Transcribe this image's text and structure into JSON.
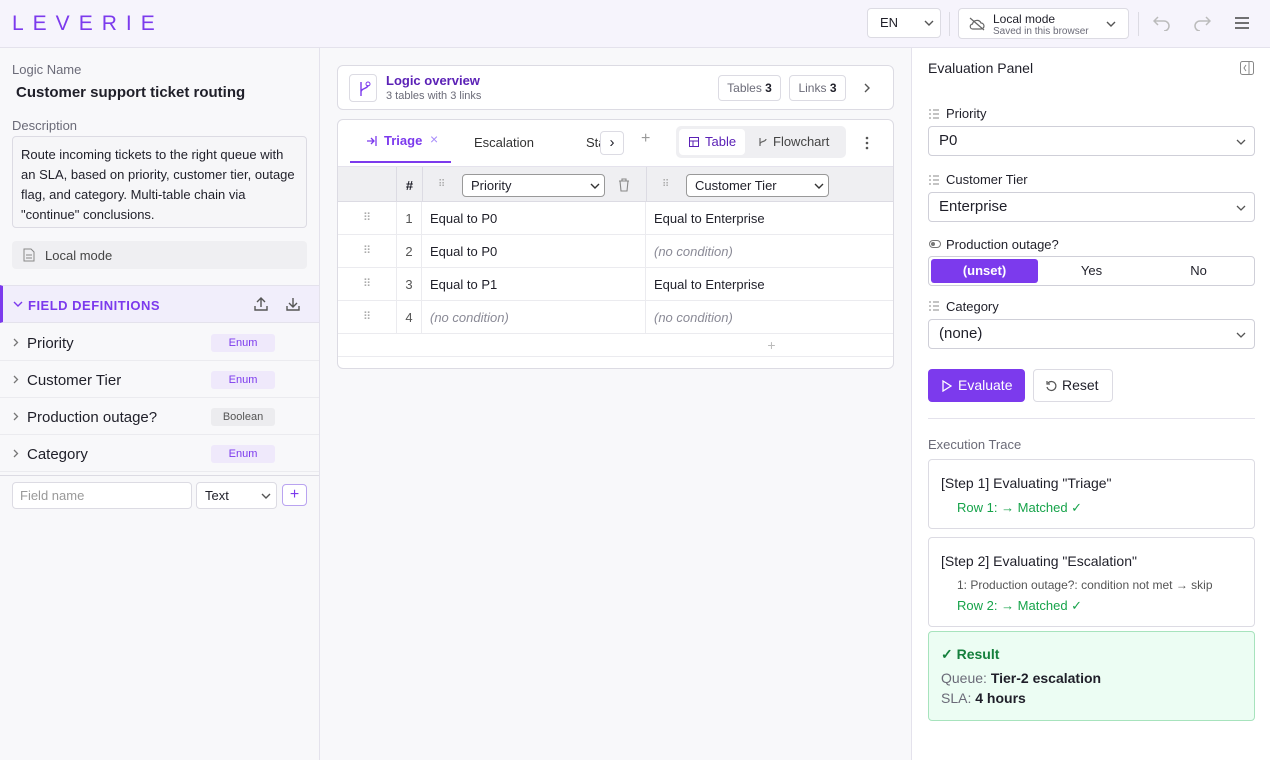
{
  "header": {
    "logo": "LEVERIE",
    "language": "EN",
    "mode_title": "Local mode",
    "mode_subtitle": "Saved in this browser"
  },
  "sidebar": {
    "logic_name_label": "Logic Name",
    "logic_name": "Customer support ticket routing",
    "description_label": "Description",
    "description": "Route incoming tickets to the right queue with an SLA, based on priority, customer tier, outage flag, and category. Multi-table chain via \"continue\" conclusions.",
    "storage": "Local mode",
    "field_definitions_title": "FIELD DEFINITIONS",
    "fields": [
      {
        "name": "Priority",
        "type": "Enum"
      },
      {
        "name": "Customer Tier",
        "type": "Enum"
      },
      {
        "name": "Production outage?",
        "type": "Boolean"
      },
      {
        "name": "Category",
        "type": "Enum"
      }
    ],
    "new_field_placeholder": "Field name",
    "new_field_type": "Text"
  },
  "overview": {
    "title": "Logic overview",
    "subtitle": "3 tables with 3 links",
    "tables_label": "Tables",
    "tables_count": 3,
    "links_label": "Links",
    "links_count": 3
  },
  "tabs": [
    "Triage",
    "Escalation",
    "Status"
  ],
  "views": [
    "Table",
    "Flowchart"
  ],
  "table": {
    "columns": [
      "#",
      "Priority",
      "Customer Tier"
    ],
    "rows": [
      [
        1,
        "Equal to P0",
        "Equal to Enterprise"
      ],
      [
        2,
        "Equal to P0",
        "(no condition)"
      ],
      [
        3,
        "Equal to P1",
        "Equal to Enterprise"
      ],
      [
        4,
        "(no condition)",
        "(no condition)"
      ]
    ]
  },
  "evaluation": {
    "title": "Evaluation Panel",
    "inputs": [
      {
        "label": "Priority",
        "value": "P0"
      },
      {
        "label": "Customer Tier",
        "value": "Enterprise"
      }
    ],
    "boolean_label": "Production outage?",
    "boolean_options": [
      "(unset)",
      "Yes",
      "No"
    ],
    "category_label": "Category",
    "category_value": "(none)",
    "evaluate": "Evaluate",
    "reset": "Reset",
    "trace_title": "Execution Trace",
    "steps": [
      {
        "title": "[Step 1] Evaluating \"Triage\"",
        "lines": [
          "Row 1: → Matched ✓"
        ]
      },
      {
        "title": "[Step 2] Evaluating \"Escalation\"",
        "lines": [
          "1: Production outage?: condition not met → skip",
          "Row 2: → Matched ✓"
        ]
      }
    ],
    "result": {
      "title": "✓ Result",
      "lines": [
        {
          "label": "Queue:",
          "value": "Tier-2 escalation"
        },
        {
          "label": "SLA:",
          "value": "4 hours"
        }
      ]
    }
  }
}
